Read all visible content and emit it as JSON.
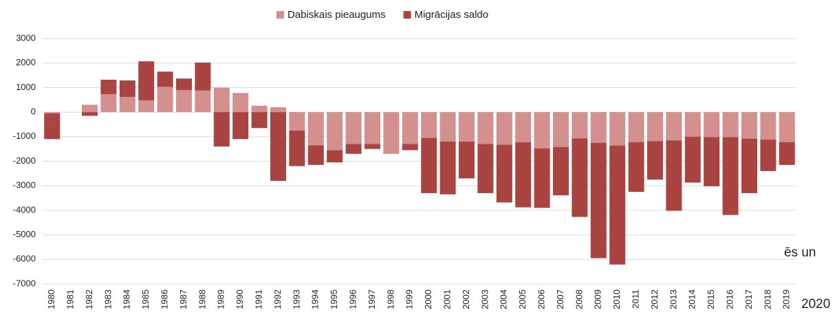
{
  "chart_data": {
    "type": "bar",
    "stacked": true,
    "categories": [
      "1980",
      "1981",
      "1982",
      "1983",
      "1984",
      "1985",
      "1986",
      "1987",
      "1988",
      "1989",
      "1990",
      "1991",
      "1992",
      "1993",
      "1994",
      "1995",
      "1996",
      "1997",
      "1998",
      "1999",
      "2000",
      "2001",
      "2002",
      "2003",
      "2004",
      "2005",
      "2006",
      "2007",
      "2008",
      "2009",
      "2010",
      "2011",
      "2012",
      "2013",
      "2014",
      "2015",
      "2016",
      "2017",
      "2018",
      "2019"
    ],
    "series": [
      {
        "name": "Dabiskais pieaugums",
        "color": "#d4908f",
        "values": [
          -50,
          0,
          300,
          730,
          620,
          480,
          1030,
          900,
          880,
          1000,
          780,
          260,
          200,
          -750,
          -1350,
          -1550,
          -1300,
          -1300,
          -1700,
          -1300,
          -1050,
          -1200,
          -1200,
          -1300,
          -1330,
          -1230,
          -1480,
          -1420,
          -1070,
          -1250,
          -1360,
          -1220,
          -1180,
          -1150,
          -1000,
          -1020,
          -1020,
          -1080,
          -1120,
          -1220
        ]
      },
      {
        "name": "Migrācijas saldo",
        "color": "#a94442",
        "values": [
          -1050,
          0,
          -150,
          590,
          670,
          1590,
          620,
          470,
          1140,
          -1400,
          -1100,
          -650,
          -2800,
          -1450,
          -800,
          -500,
          -400,
          -200,
          0,
          -250,
          -2250,
          -2150,
          -1500,
          -2000,
          -2350,
          -2650,
          -2420,
          -1970,
          -3200,
          -4700,
          -4850,
          -2030,
          -1570,
          -2870,
          -1870,
          -2000,
          -3170,
          -2220,
          -1280,
          -930
        ]
      }
    ],
    "ylim": [
      -7000,
      3000
    ],
    "yticks": [
      -7000,
      -6000,
      -5000,
      -4000,
      -3000,
      -2000,
      -1000,
      0,
      1000,
      2000,
      3000
    ],
    "grid": true,
    "annotations": [
      "ēs un",
      "2020"
    ]
  }
}
